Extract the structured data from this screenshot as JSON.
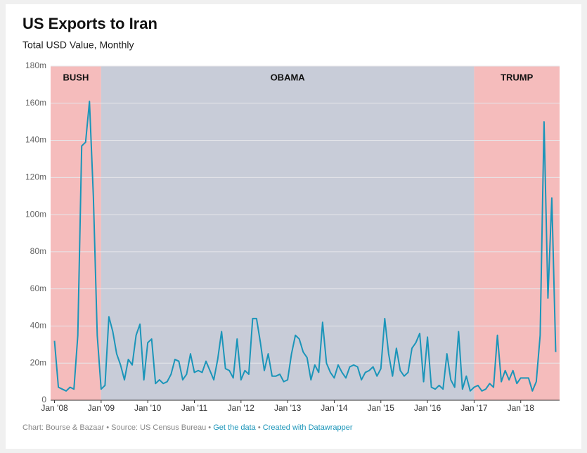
{
  "chart_data": {
    "type": "line",
    "title": "US Exports to Iran",
    "subtitle": "Total USD Value, Monthly",
    "footer": {
      "source": "Chart: Bourse & Bazaar • Source: US Census Bureau •",
      "link1": "Get the data",
      "separator": "•",
      "link2": "Created with Datawrapper"
    },
    "x": [
      "2008-01",
      "2008-02",
      "2008-03",
      "2008-04",
      "2008-05",
      "2008-06",
      "2008-07",
      "2008-08",
      "2008-09",
      "2008-10",
      "2008-11",
      "2008-12",
      "2009-01",
      "2009-02",
      "2009-03",
      "2009-04",
      "2009-05",
      "2009-06",
      "2009-07",
      "2009-08",
      "2009-09",
      "2009-10",
      "2009-11",
      "2009-12",
      "2010-01",
      "2010-02",
      "2010-03",
      "2010-04",
      "2010-05",
      "2010-06",
      "2010-07",
      "2010-08",
      "2010-09",
      "2010-10",
      "2010-11",
      "2010-12",
      "2011-01",
      "2011-02",
      "2011-03",
      "2011-04",
      "2011-05",
      "2011-06",
      "2011-07",
      "2011-08",
      "2011-09",
      "2011-10",
      "2011-11",
      "2011-12",
      "2012-01",
      "2012-02",
      "2012-03",
      "2012-04",
      "2012-05",
      "2012-06",
      "2012-07",
      "2012-08",
      "2012-09",
      "2012-10",
      "2012-11",
      "2012-12",
      "2013-01",
      "2013-02",
      "2013-03",
      "2013-04",
      "2013-05",
      "2013-06",
      "2013-07",
      "2013-08",
      "2013-09",
      "2013-10",
      "2013-11",
      "2013-12",
      "2014-01",
      "2014-02",
      "2014-03",
      "2014-04",
      "2014-05",
      "2014-06",
      "2014-07",
      "2014-08",
      "2014-09",
      "2014-10",
      "2014-11",
      "2014-12",
      "2015-01",
      "2015-02",
      "2015-03",
      "2015-04",
      "2015-05",
      "2015-06",
      "2015-07",
      "2015-08",
      "2015-09",
      "2015-10",
      "2015-11",
      "2015-12",
      "2016-01",
      "2016-02",
      "2016-03",
      "2016-04",
      "2016-05",
      "2016-06",
      "2016-07",
      "2016-08",
      "2016-09",
      "2016-10",
      "2016-11",
      "2016-12",
      "2017-01",
      "2017-02",
      "2017-03",
      "2017-04",
      "2017-05",
      "2017-06",
      "2017-07",
      "2017-08",
      "2017-09",
      "2017-10",
      "2017-11",
      "2017-12",
      "2018-01",
      "2018-02",
      "2018-03",
      "2018-04",
      "2018-05",
      "2018-06",
      "2018-07",
      "2018-08",
      "2018-09",
      "2018-10"
    ],
    "series": [
      {
        "name": "US Exports to Iran",
        "color": "#1b95b9",
        "values": [
          32,
          7,
          6,
          5,
          7,
          6,
          35,
          137,
          139,
          161,
          110,
          35,
          6,
          8,
          45,
          37,
          25,
          19,
          11,
          22,
          19,
          35,
          41,
          11,
          31,
          33,
          9,
          11,
          9,
          10,
          14,
          22,
          21,
          11,
          14,
          25,
          15,
          16,
          15,
          21,
          16,
          11,
          22,
          37,
          17,
          16,
          12,
          33,
          11,
          16,
          14,
          44,
          44,
          31,
          16,
          25,
          13,
          13,
          14,
          10,
          11,
          25,
          35,
          33,
          26,
          23,
          11,
          19,
          15,
          42,
          20,
          15,
          12,
          19,
          15,
          12,
          18,
          19,
          18,
          11,
          15,
          16,
          18,
          13,
          17,
          44,
          25,
          13,
          28,
          16,
          13,
          15,
          28,
          31,
          36,
          10,
          34,
          7,
          6,
          8,
          6,
          25,
          11,
          7,
          37,
          6,
          13,
          5,
          7,
          8,
          5,
          6,
          9,
          7,
          35,
          10,
          16,
          11,
          16,
          9,
          12,
          12,
          12,
          5,
          10,
          35,
          150,
          55,
          109,
          26
        ]
      }
    ],
    "xlim": [
      "2007-12",
      "2018-11"
    ],
    "xticks": [
      {
        "value": "2008-01",
        "label": "Jan '08"
      },
      {
        "value": "2009-01",
        "label": "Jan '09"
      },
      {
        "value": "2010-01",
        "label": "Jan '10"
      },
      {
        "value": "2011-01",
        "label": "Jan '11"
      },
      {
        "value": "2012-01",
        "label": "Jan '12"
      },
      {
        "value": "2013-01",
        "label": "Jan '13"
      },
      {
        "value": "2014-01",
        "label": "Jan '14"
      },
      {
        "value": "2015-01",
        "label": "Jan '15"
      },
      {
        "value": "2016-01",
        "label": "Jan '16"
      },
      {
        "value": "2017-01",
        "label": "Jan '17"
      },
      {
        "value": "2018-01",
        "label": "Jan '18"
      }
    ],
    "ylim": [
      0,
      180
    ],
    "yticks": [
      0,
      {
        "value": 20,
        "label": "20m"
      },
      {
        "value": 40,
        "label": "40m"
      },
      {
        "value": 60,
        "label": "60m"
      },
      {
        "value": 80,
        "label": "80m"
      },
      {
        "value": 100,
        "label": "100m"
      },
      {
        "value": 120,
        "label": "120m"
      },
      {
        "value": 140,
        "label": "140m"
      },
      {
        "value": 160,
        "label": "160m"
      },
      {
        "value": 180,
        "label": "180m"
      }
    ],
    "grid": true,
    "regions": [
      {
        "label": "BUSH",
        "from": "2007-12",
        "to": "2009-01",
        "color": "#f5bcbc"
      },
      {
        "label": "OBAMA",
        "from": "2009-01",
        "to": "2017-01",
        "color": "#c8ccd8"
      },
      {
        "label": "TRUMP",
        "from": "2017-01",
        "to": "2018-11",
        "color": "#f5bcbc"
      }
    ]
  }
}
